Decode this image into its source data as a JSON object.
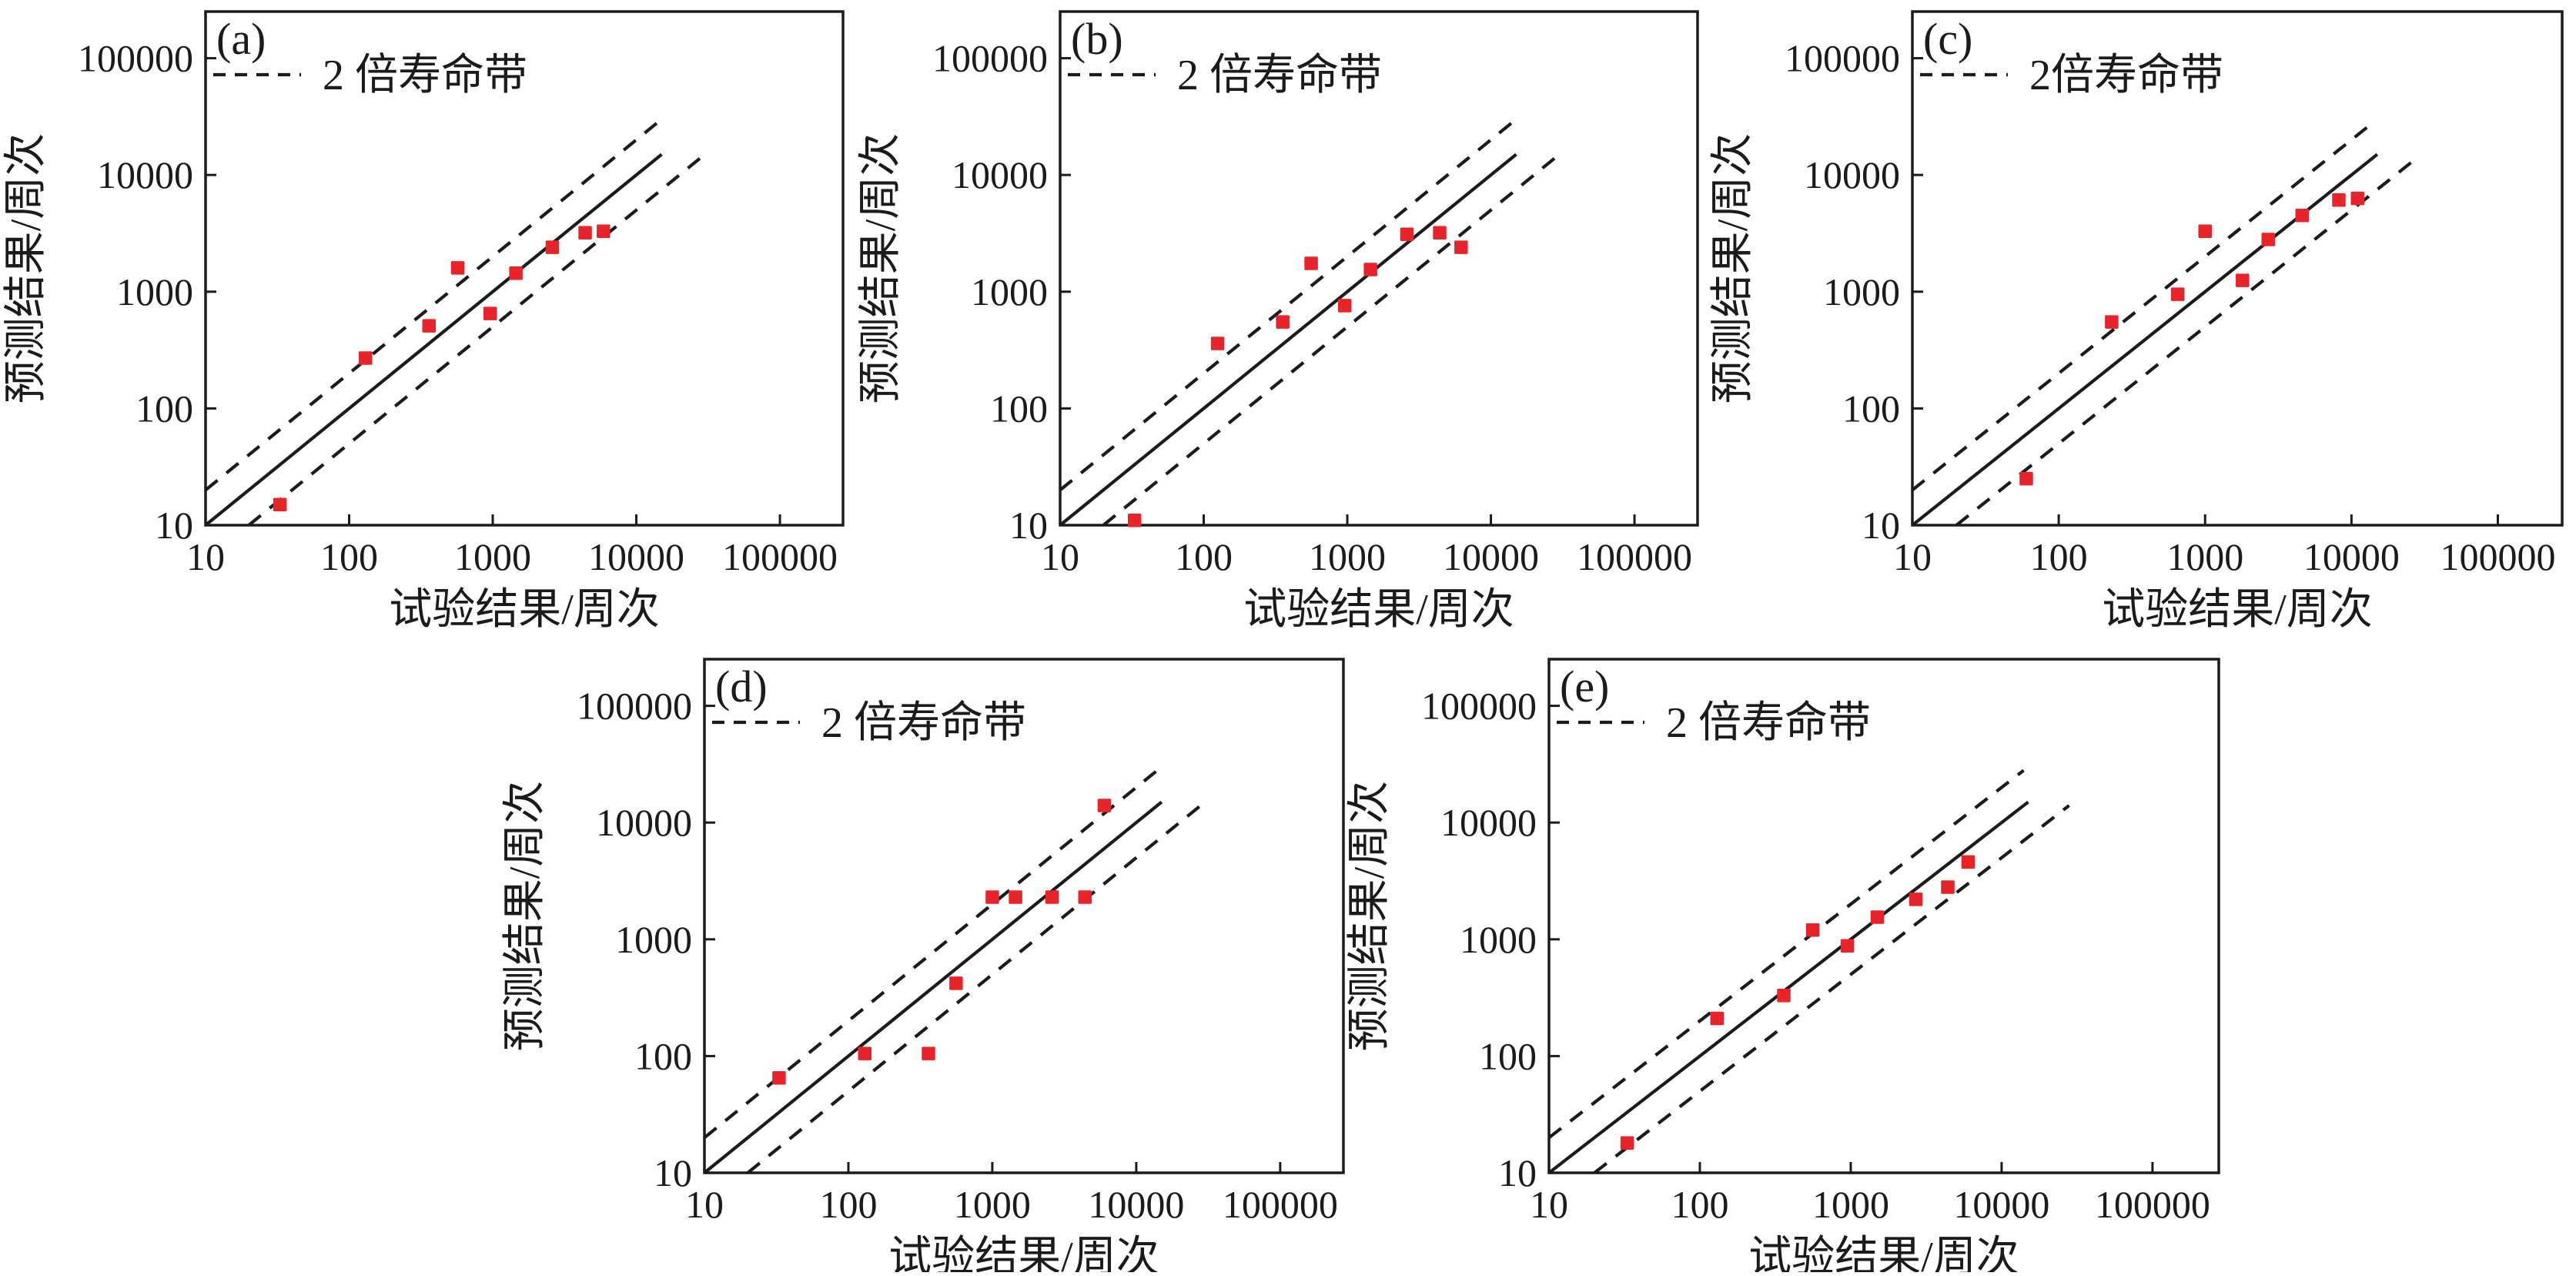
{
  "figure": {
    "description": "预测结果与试验结果对比散点图（双对数坐标，含2倍寿命带）",
    "background": "#ffffff"
  },
  "colors": {
    "marker": "#e82329",
    "line": "#1b1b1b",
    "text": "#1b1b1b",
    "background": "#ffffff"
  },
  "chart_data": {
    "type": "scatter",
    "scale": "log-log",
    "xlabel": "试验结果/周次",
    "ylabel": "预测结果/周次",
    "tick_labels": [
      "10",
      "100",
      "1000",
      "10000",
      "100000"
    ],
    "tick_values": [
      10,
      100,
      1000,
      10000,
      100000
    ],
    "xlim": [
      10,
      275000
    ],
    "ylim": [
      10,
      251000
    ],
    "grid": "off",
    "legend_position": "top-left-inside",
    "lines": {
      "identity": {
        "style": "solid",
        "factor": 1,
        "x_range": [
          10,
          15000
        ]
      },
      "upper_band": {
        "style": "dashed",
        "factor": 2,
        "x_range": [
          10,
          14000
        ]
      },
      "lower_band": {
        "style": "dashed",
        "factor": 0.5,
        "x_range": [
          20,
          28000
        ]
      }
    },
    "panels": [
      {
        "letter": "(a)",
        "legend_label": "2 倍寿命带",
        "points": [
          [
            33,
            15
          ],
          [
            130,
            270
          ],
          [
            360,
            510
          ],
          [
            570,
            1600
          ],
          [
            960,
            650
          ],
          [
            1450,
            1440
          ],
          [
            2600,
            2400
          ],
          [
            4400,
            3200
          ],
          [
            5900,
            3300
          ]
        ]
      },
      {
        "letter": "(b)",
        "legend_label": "2 倍寿命带",
        "points": [
          [
            33,
            11
          ],
          [
            125,
            360
          ],
          [
            355,
            550
          ],
          [
            560,
            1750
          ],
          [
            960,
            760
          ],
          [
            1450,
            1550
          ],
          [
            2600,
            3100
          ],
          [
            4400,
            3200
          ],
          [
            6200,
            2400
          ]
        ]
      },
      {
        "letter": "(c)",
        "legend_label": "2倍寿命带",
        "points": [
          [
            60,
            25
          ],
          [
            230,
            550
          ],
          [
            650,
            950
          ],
          [
            1000,
            3300
          ],
          [
            1800,
            1250
          ],
          [
            2700,
            2800
          ],
          [
            4600,
            4500
          ],
          [
            8200,
            6100
          ],
          [
            11000,
            6300
          ]
        ]
      },
      {
        "letter": "(d)",
        "legend_label": "2 倍寿命带",
        "points": [
          [
            33,
            65
          ],
          [
            130,
            105
          ],
          [
            360,
            105
          ],
          [
            560,
            420
          ],
          [
            1000,
            2300
          ],
          [
            1450,
            2300
          ],
          [
            2600,
            2300
          ],
          [
            4400,
            2300
          ],
          [
            6000,
            14000
          ]
        ]
      },
      {
        "letter": "(e)",
        "legend_label": "2 倍寿命带",
        "points": [
          [
            33,
            18
          ],
          [
            130,
            210
          ],
          [
            360,
            330
          ],
          [
            560,
            1200
          ],
          [
            950,
            880
          ],
          [
            1500,
            1550
          ],
          [
            2700,
            2200
          ],
          [
            4400,
            2800
          ],
          [
            6000,
            4600
          ]
        ]
      }
    ]
  }
}
